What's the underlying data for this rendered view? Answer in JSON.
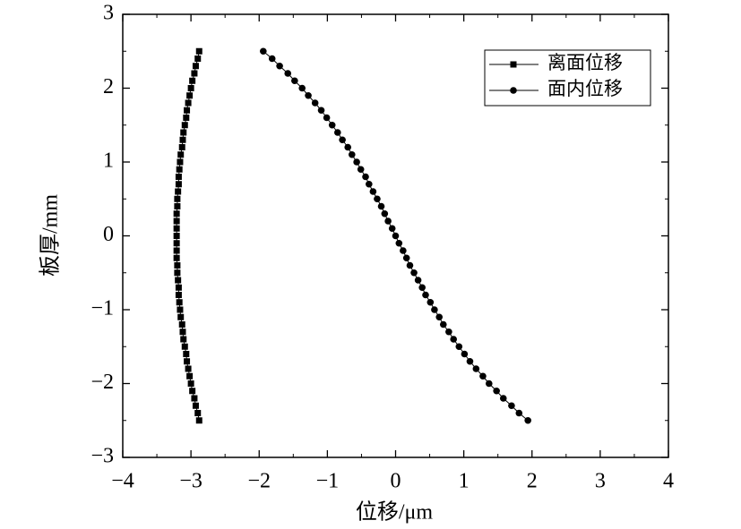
{
  "chart_data": {
    "type": "line",
    "x_label": "位移/μm",
    "y_label": "板厚/mm",
    "xlim": [
      -4,
      4
    ],
    "ylim": [
      -3,
      3
    ],
    "xticks": [
      {
        "value": -4,
        "label": "−4"
      },
      {
        "value": -3,
        "label": "−3"
      },
      {
        "value": -2,
        "label": "−2"
      },
      {
        "value": -1,
        "label": "−1"
      },
      0,
      1,
      2,
      3,
      4
    ],
    "yticks": [
      {
        "value": -3,
        "label": "−3"
      },
      {
        "value": -2,
        "label": "−2"
      },
      {
        "value": -1,
        "label": "−1"
      },
      0,
      1,
      2,
      3
    ],
    "legend": "upper right",
    "y": [
      2.5,
      2.4,
      2.3,
      2.2,
      2.1,
      2,
      1.9,
      1.8,
      1.7,
      1.6,
      1.5,
      1.4,
      1.3,
      1.2,
      1.1,
      1,
      0.9,
      0.8,
      0.7,
      0.6,
      0.5,
      0.4,
      0.3,
      0.2,
      0.1,
      0,
      -0.1,
      -0.2,
      -0.3,
      -0.4,
      -0.5,
      -0.6,
      -0.7,
      -0.8,
      -0.9,
      -1,
      -1.1,
      -1.2,
      -1.3,
      -1.4,
      -1.5,
      -1.6,
      -1.7,
      -1.8,
      -1.9,
      -2,
      -2.1,
      -2.2,
      -2.3,
      -2.4,
      -2.5
    ],
    "series": [
      {
        "name": "离面位移",
        "color": "#000000",
        "marker": "square",
        "x": [
          -2.88,
          -2.9,
          -2.93,
          -2.95,
          -2.98,
          -3,
          -3.02,
          -3.04,
          -3.06,
          -3.07,
          -3.09,
          -3.11,
          -3.12,
          -3.13,
          -3.15,
          -3.16,
          -3.17,
          -3.18,
          -3.18,
          -3.19,
          -3.2,
          -3.2,
          -3.21,
          -3.21,
          -3.21,
          -3.21,
          -3.21,
          -3.21,
          -3.21,
          -3.2,
          -3.2,
          -3.19,
          -3.18,
          -3.18,
          -3.17,
          -3.16,
          -3.15,
          -3.13,
          -3.12,
          -3.11,
          -3.09,
          -3.07,
          -3.06,
          -3.04,
          -3.02,
          -3,
          -2.98,
          -2.95,
          -2.93,
          -2.9,
          -2.88
        ]
      },
      {
        "name": "面内位移",
        "color": "#000000",
        "marker": "circle",
        "x": [
          -1.94,
          -1.81,
          -1.7,
          -1.58,
          -1.48,
          -1.37,
          -1.28,
          -1.18,
          -1.09,
          -1.01,
          -0.93,
          -0.85,
          -0.78,
          -0.7,
          -0.64,
          -0.57,
          -0.51,
          -0.44,
          -0.39,
          -0.33,
          -0.27,
          -0.21,
          -0.16,
          -0.11,
          -0.05,
          0,
          0.05,
          0.11,
          0.16,
          0.21,
          0.27,
          0.33,
          0.39,
          0.44,
          0.51,
          0.57,
          0.64,
          0.7,
          0.78,
          0.85,
          0.93,
          1.01,
          1.09,
          1.18,
          1.28,
          1.37,
          1.48,
          1.58,
          1.7,
          1.81,
          1.94
        ]
      }
    ]
  }
}
